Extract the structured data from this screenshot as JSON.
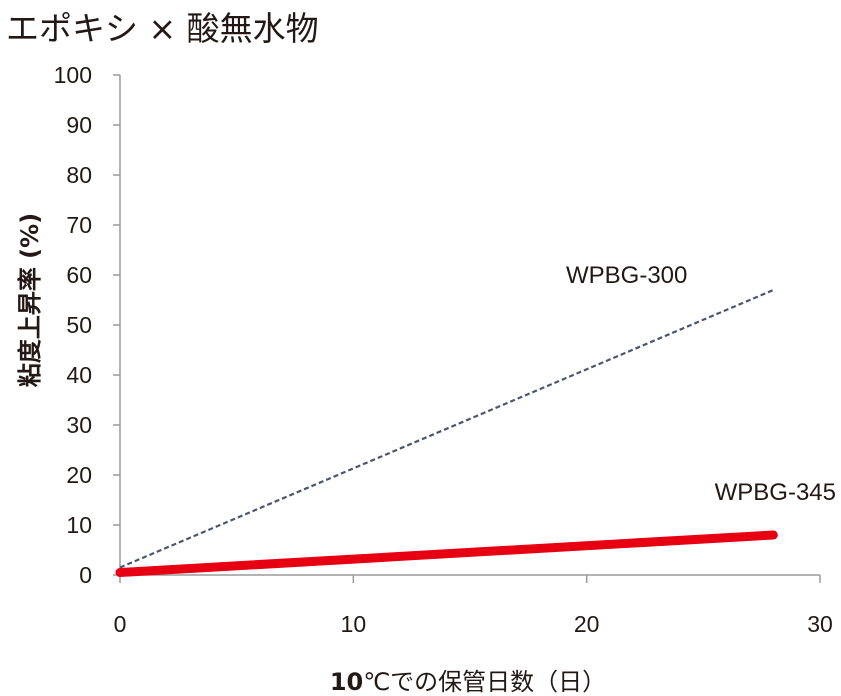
{
  "chart_data": {
    "type": "line",
    "title": "エポキシ × 酸無水物",
    "xlabel_bold": "10",
    "xlabel_rest": "℃での保管日数（日）",
    "ylabel": "粘度上昇率 (%)",
    "xlim": [
      0,
      30
    ],
    "ylim": [
      0,
      100
    ],
    "xticks": [
      0,
      10,
      20,
      30
    ],
    "yticks": [
      0,
      10,
      20,
      30,
      40,
      50,
      60,
      70,
      80,
      90,
      100
    ],
    "grid": false,
    "series": [
      {
        "name": "WPBG-300",
        "x": [
          0,
          28
        ],
        "y": [
          1.5,
          57
        ],
        "color": "#4a5670",
        "style": "dashed"
      },
      {
        "name": "WPBG-345",
        "x": [
          0,
          28
        ],
        "y": [
          0.5,
          8
        ],
        "color": "#e60012",
        "style": "solid"
      }
    ]
  }
}
